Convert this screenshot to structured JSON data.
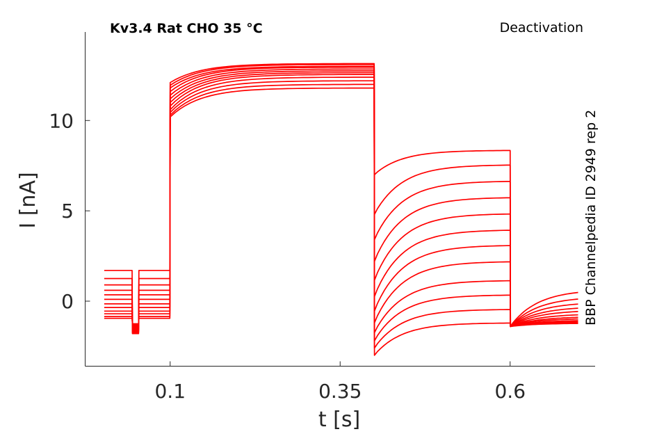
{
  "chart_data": {
    "type": "line",
    "title": "Kv3.4  Rat  CHO  35 °C",
    "subtitle": "Deactivation",
    "side_label": "BBP Channelpedia ID 2949 rep 2",
    "xlabel": "t [s]",
    "ylabel": "I [nA]",
    "xlim": [
      -0.025,
      0.725
    ],
    "ylim": [
      -3.6,
      14.9
    ],
    "xticks": [
      0.1,
      0.35,
      0.6
    ],
    "xtick_labels": [
      "0.1",
      "0.35",
      "0.6"
    ],
    "yticks": [
      0,
      5,
      10
    ],
    "ytick_labels": [
      "0",
      "5",
      "10"
    ],
    "grid": false,
    "legend": "none",
    "color": "#ff0000",
    "protocol": {
      "t_start": 0.003,
      "notch_start": 0.044,
      "notch_end": 0.054,
      "step_on": 0.1,
      "step_off": 0.4,
      "tail_end": 0.6,
      "t_end": 0.7
    },
    "series": [
      {
        "pre": 1.7,
        "notch": -1.8,
        "step_start": 12.1,
        "step_end": 13.15,
        "tail_peak": -3.0,
        "tail_end": -1.2,
        "post_end": 0.65
      },
      {
        "pre": 1.25,
        "notch": -1.75,
        "step_start": 11.95,
        "step_end": 13.1,
        "tail_peak": -2.6,
        "tail_end": -0.45,
        "post_end": 0.25
      },
      {
        "pre": 0.9,
        "notch": -1.7,
        "step_start": 11.8,
        "step_end": 13.0,
        "tail_peak": -2.2,
        "tail_end": 0.35,
        "post_end": -0.05
      },
      {
        "pre": 0.6,
        "notch": -1.65,
        "step_start": 11.6,
        "step_end": 12.95,
        "tail_peak": -1.75,
        "tail_end": 1.15,
        "post_end": -0.3
      },
      {
        "pre": 0.35,
        "notch": -1.6,
        "step_start": 11.4,
        "step_end": 12.85,
        "tail_peak": -1.2,
        "tail_end": 2.2,
        "post_end": -0.5
      },
      {
        "pre": 0.1,
        "notch": -1.55,
        "step_start": 11.2,
        "step_end": 12.75,
        "tail_peak": -0.55,
        "tail_end": 3.1,
        "post_end": -0.7
      },
      {
        "pre": -0.15,
        "notch": -1.5,
        "step_start": 11.0,
        "step_end": 12.65,
        "tail_peak": 0.25,
        "tail_end": 3.95,
        "post_end": -0.85
      },
      {
        "pre": -0.35,
        "notch": -1.45,
        "step_start": 10.8,
        "step_end": 12.55,
        "tail_peak": 1.15,
        "tail_end": 4.85,
        "post_end": -0.95
      },
      {
        "pre": -0.55,
        "notch": -1.4,
        "step_start": 10.6,
        "step_end": 12.4,
        "tail_peak": 2.2,
        "tail_end": 5.75,
        "post_end": -1.05
      },
      {
        "pre": -0.7,
        "notch": -1.35,
        "step_start": 10.45,
        "step_end": 12.2,
        "tail_peak": 3.4,
        "tail_end": 6.65,
        "post_end": -1.12
      },
      {
        "pre": -0.85,
        "notch": -1.3,
        "step_start": 10.3,
        "step_end": 12.0,
        "tail_peak": 4.8,
        "tail_end": 7.55,
        "post_end": -1.18
      },
      {
        "pre": -0.95,
        "notch": -1.25,
        "step_start": 10.2,
        "step_end": 11.8,
        "tail_peak": 7.0,
        "tail_end": 8.35,
        "post_end": -1.22
      }
    ]
  }
}
